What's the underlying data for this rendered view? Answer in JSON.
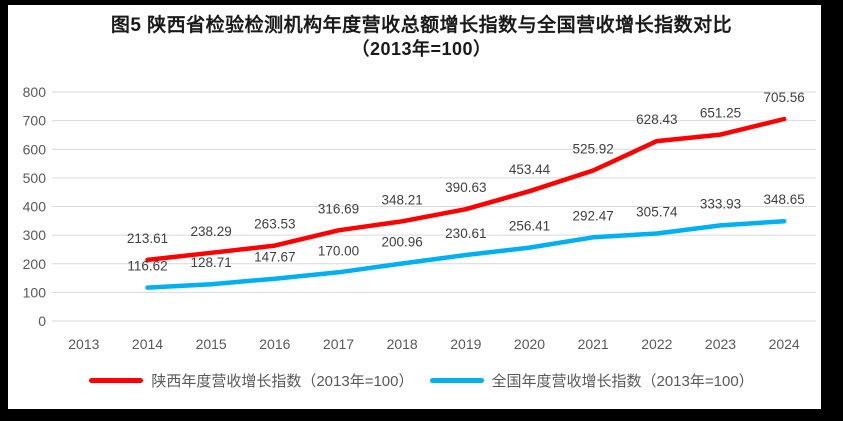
{
  "page": {
    "title_line1": "图5  陕西省检验检测机构年度营收总额增长指数与全国营收增长指数对比",
    "title_line2": "（2013年=100）"
  },
  "colors": {
    "shaanxi_line": "#ff0000",
    "national_line": "#00b0f0",
    "gridline": "#d9d9d9",
    "axis_text": "#595959",
    "data_label_text": "#404040",
    "frame": "#000000",
    "background": "#ffffff"
  },
  "chart_data": {
    "type": "line",
    "title": "图5  陕西省检验检测机构年度营收总额增长指数与全国营收增长指数对比（2013年=100）",
    "xlabel": "",
    "ylabel": "",
    "ylim": [
      0,
      800
    ],
    "ytick_step": 100,
    "grid": true,
    "legend_position": "bottom",
    "categories": [
      "2013",
      "2014",
      "2015",
      "2016",
      "2017",
      "2018",
      "2019",
      "2020",
      "2021",
      "2022",
      "2023",
      "2024"
    ],
    "series": [
      {
        "name": "陕西年度营收增长指数（2013年=100）",
        "color": "#ff0000",
        "values": [
          null,
          213.61,
          238.29,
          263.53,
          316.69,
          348.21,
          390.63,
          453.44,
          525.92,
          628.43,
          651.25,
          705.56
        ]
      },
      {
        "name": "全国年度营收增长指数（2013年=100）",
        "color": "#00b0f0",
        "values": [
          null,
          116.62,
          128.71,
          147.67,
          170.0,
          200.96,
          230.61,
          256.41,
          292.47,
          305.74,
          333.93,
          348.65
        ]
      }
    ]
  }
}
